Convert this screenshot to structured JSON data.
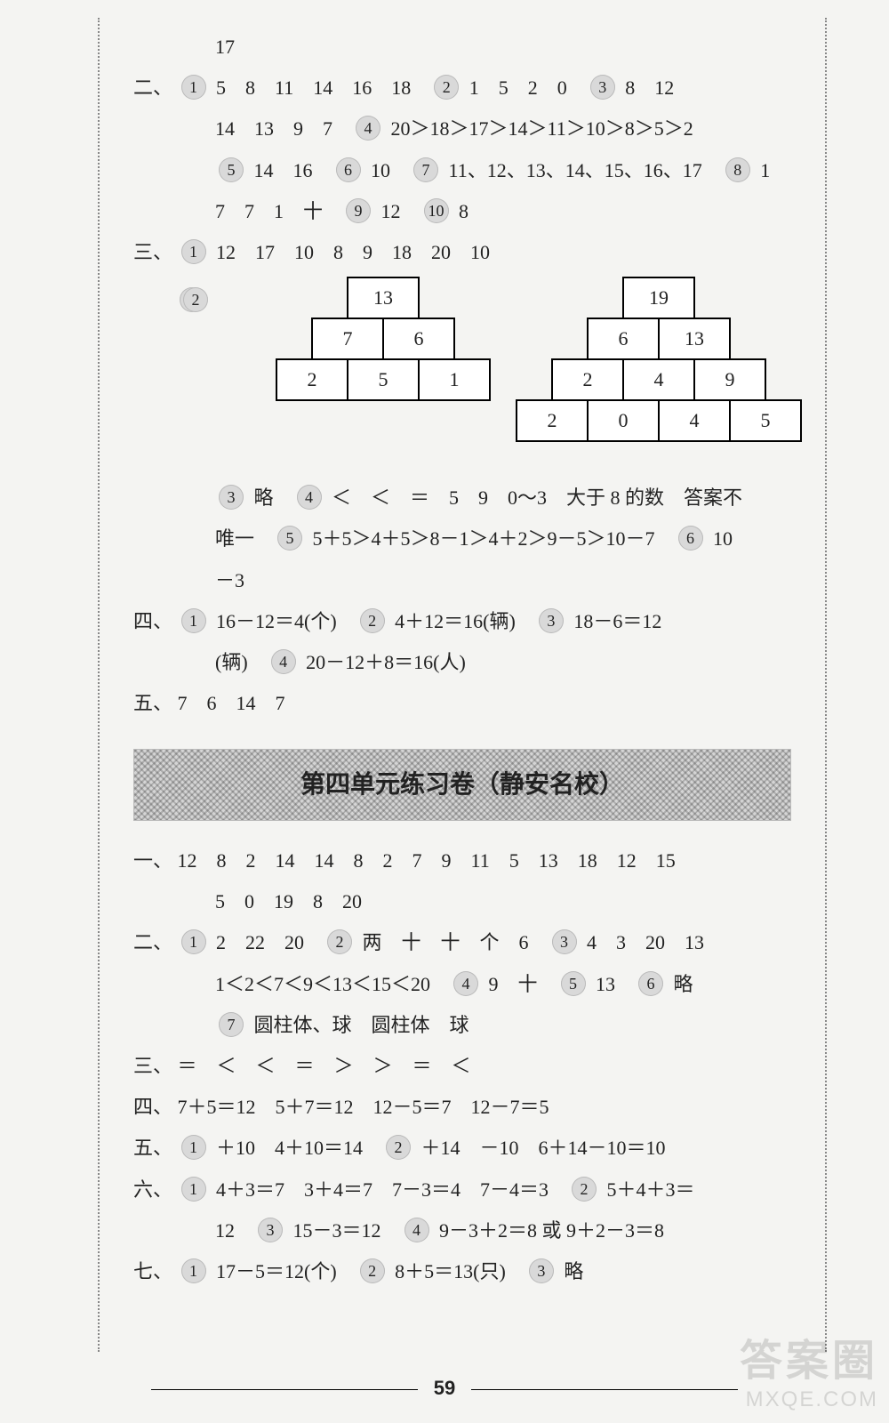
{
  "colors": {
    "bg": "#f4f4f2",
    "text": "#222",
    "rule": "#888",
    "circle": "#d9d9d9"
  },
  "page_number": "59",
  "watermark": {
    "line1": "答案圈",
    "line2": "MXQE.COM"
  },
  "top_fragment": "17",
  "sectionA": {
    "two": {
      "label": "二、",
      "runs": [
        "①  5　8　11　14　16　18　②  1　5　2　0　③  8　12",
        "14　13　9　7　④  20＞18＞17＞14＞11＞10＞8＞5＞2",
        "⑤  14　16　⑥  10　⑦  11、12、13、14、15、16、17　⑧  1",
        "7　7　1　十　⑨  12　⑩  8"
      ]
    },
    "three": {
      "label": "三、",
      "run1": "①  12　17　10　8　9　18　20　10",
      "pyramids": {
        "label": "②",
        "left": {
          "rows": [
            [
              "13"
            ],
            [
              "7",
              "6"
            ],
            [
              "2",
              "5",
              "1"
            ]
          ]
        },
        "right": {
          "rows": [
            [
              "19"
            ],
            [
              "6",
              "13"
            ],
            [
              "2",
              "4",
              "9"
            ],
            [
              "2",
              "0",
              "4",
              "5"
            ]
          ]
        }
      },
      "runs_after": [
        "③  略　④  ＜　＜　＝　5　9　0～3　大于 8 的数　答案不",
        "唯一　⑤  5＋5＞4＋5＞8－1＞4＋2＞9－5＞10－7　⑥  10",
        "－3"
      ]
    },
    "four": {
      "label": "四、",
      "runs": [
        "①  16－12＝4(个)　②  4＋12＝16(辆)　③  18－6＝12",
        "(辆)　④  20－12＋8＝16(人)"
      ]
    },
    "five": {
      "label": "五、",
      "run": "7　6　14　7"
    }
  },
  "section_title": "第四单元练习卷（静安名校）",
  "sectionB": {
    "one": {
      "label": "一、",
      "runs": [
        "12　8　2　14　14　8　2　7　9　11　5　13　18　12　15",
        "5　0　19　8　20"
      ]
    },
    "two": {
      "label": "二、",
      "runs": [
        "①  2　22　20　②  两　十　十　个　6　③  4　3　20　13",
        "1＜2＜7＜9＜13＜15＜20　④  9　十　⑤  13　⑥  略",
        "⑦  圆柱体、球　圆柱体　球"
      ]
    },
    "three": {
      "label": "三、",
      "run": "＝　＜　＜　＝　＞　＞　＝　＜"
    },
    "four": {
      "label": "四、",
      "run": "7＋5＝12　5＋7＝12　12－5＝7　12－7＝5"
    },
    "five": {
      "label": "五、",
      "run": "①  ＋10　4＋10＝14　②  ＋14　－10　6＋14－10＝10"
    },
    "six": {
      "label": "六、",
      "runs": [
        "①  4＋3＝7　3＋4＝7　7－3＝4　7－4＝3　②  5＋4＋3＝",
        "12　③  15－3＝12　④  9－3＋2＝8 或 9＋2－3＝8"
      ]
    },
    "seven": {
      "label": "七、",
      "run": "①  17－5＝12(个)　②  8＋5＝13(只)　③  略"
    }
  }
}
